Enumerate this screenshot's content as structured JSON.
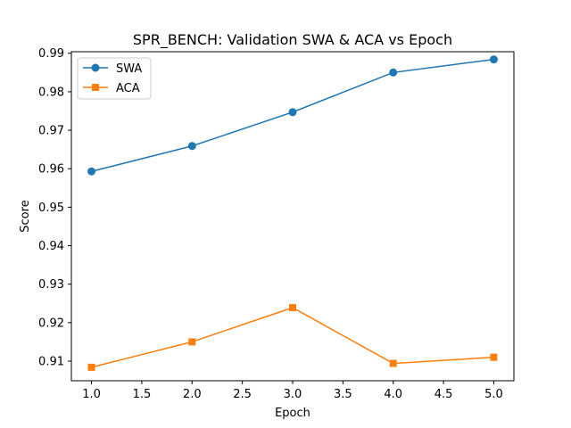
{
  "chart_data": {
    "type": "line",
    "title": "SPR_BENCH: Validation SWA & ACA vs Epoch",
    "xlabel": "Epoch",
    "ylabel": "Score",
    "x": [
      1.0,
      2.0,
      3.0,
      4.0,
      5.0
    ],
    "xlim": [
      0.8,
      5.2
    ],
    "ylim": [
      0.9049,
      0.9904
    ],
    "xticks": [
      1.0,
      1.5,
      2.0,
      2.5,
      3.0,
      3.5,
      4.0,
      4.5,
      5.0
    ],
    "xtick_labels": [
      "1.0",
      "1.5",
      "2.0",
      "2.5",
      "3.0",
      "3.5",
      "4.0",
      "4.5",
      "5.0"
    ],
    "yticks": [
      0.91,
      0.92,
      0.93,
      0.94,
      0.95,
      0.96,
      0.97,
      0.98,
      0.99
    ],
    "ytick_labels": [
      "0.91",
      "0.92",
      "0.93",
      "0.94",
      "0.95",
      "0.96",
      "0.97",
      "0.98",
      "0.99"
    ],
    "grid": false,
    "legend_position": "top-left",
    "series": [
      {
        "name": "SWA",
        "values": [
          0.9593,
          0.9659,
          0.9747,
          0.985,
          0.9884
        ],
        "color": "#1f77b4",
        "marker": "circle"
      },
      {
        "name": "ACA",
        "values": [
          0.9084,
          0.915,
          0.9239,
          0.9094,
          0.911
        ],
        "color": "#ff7f0e",
        "marker": "square"
      }
    ]
  }
}
